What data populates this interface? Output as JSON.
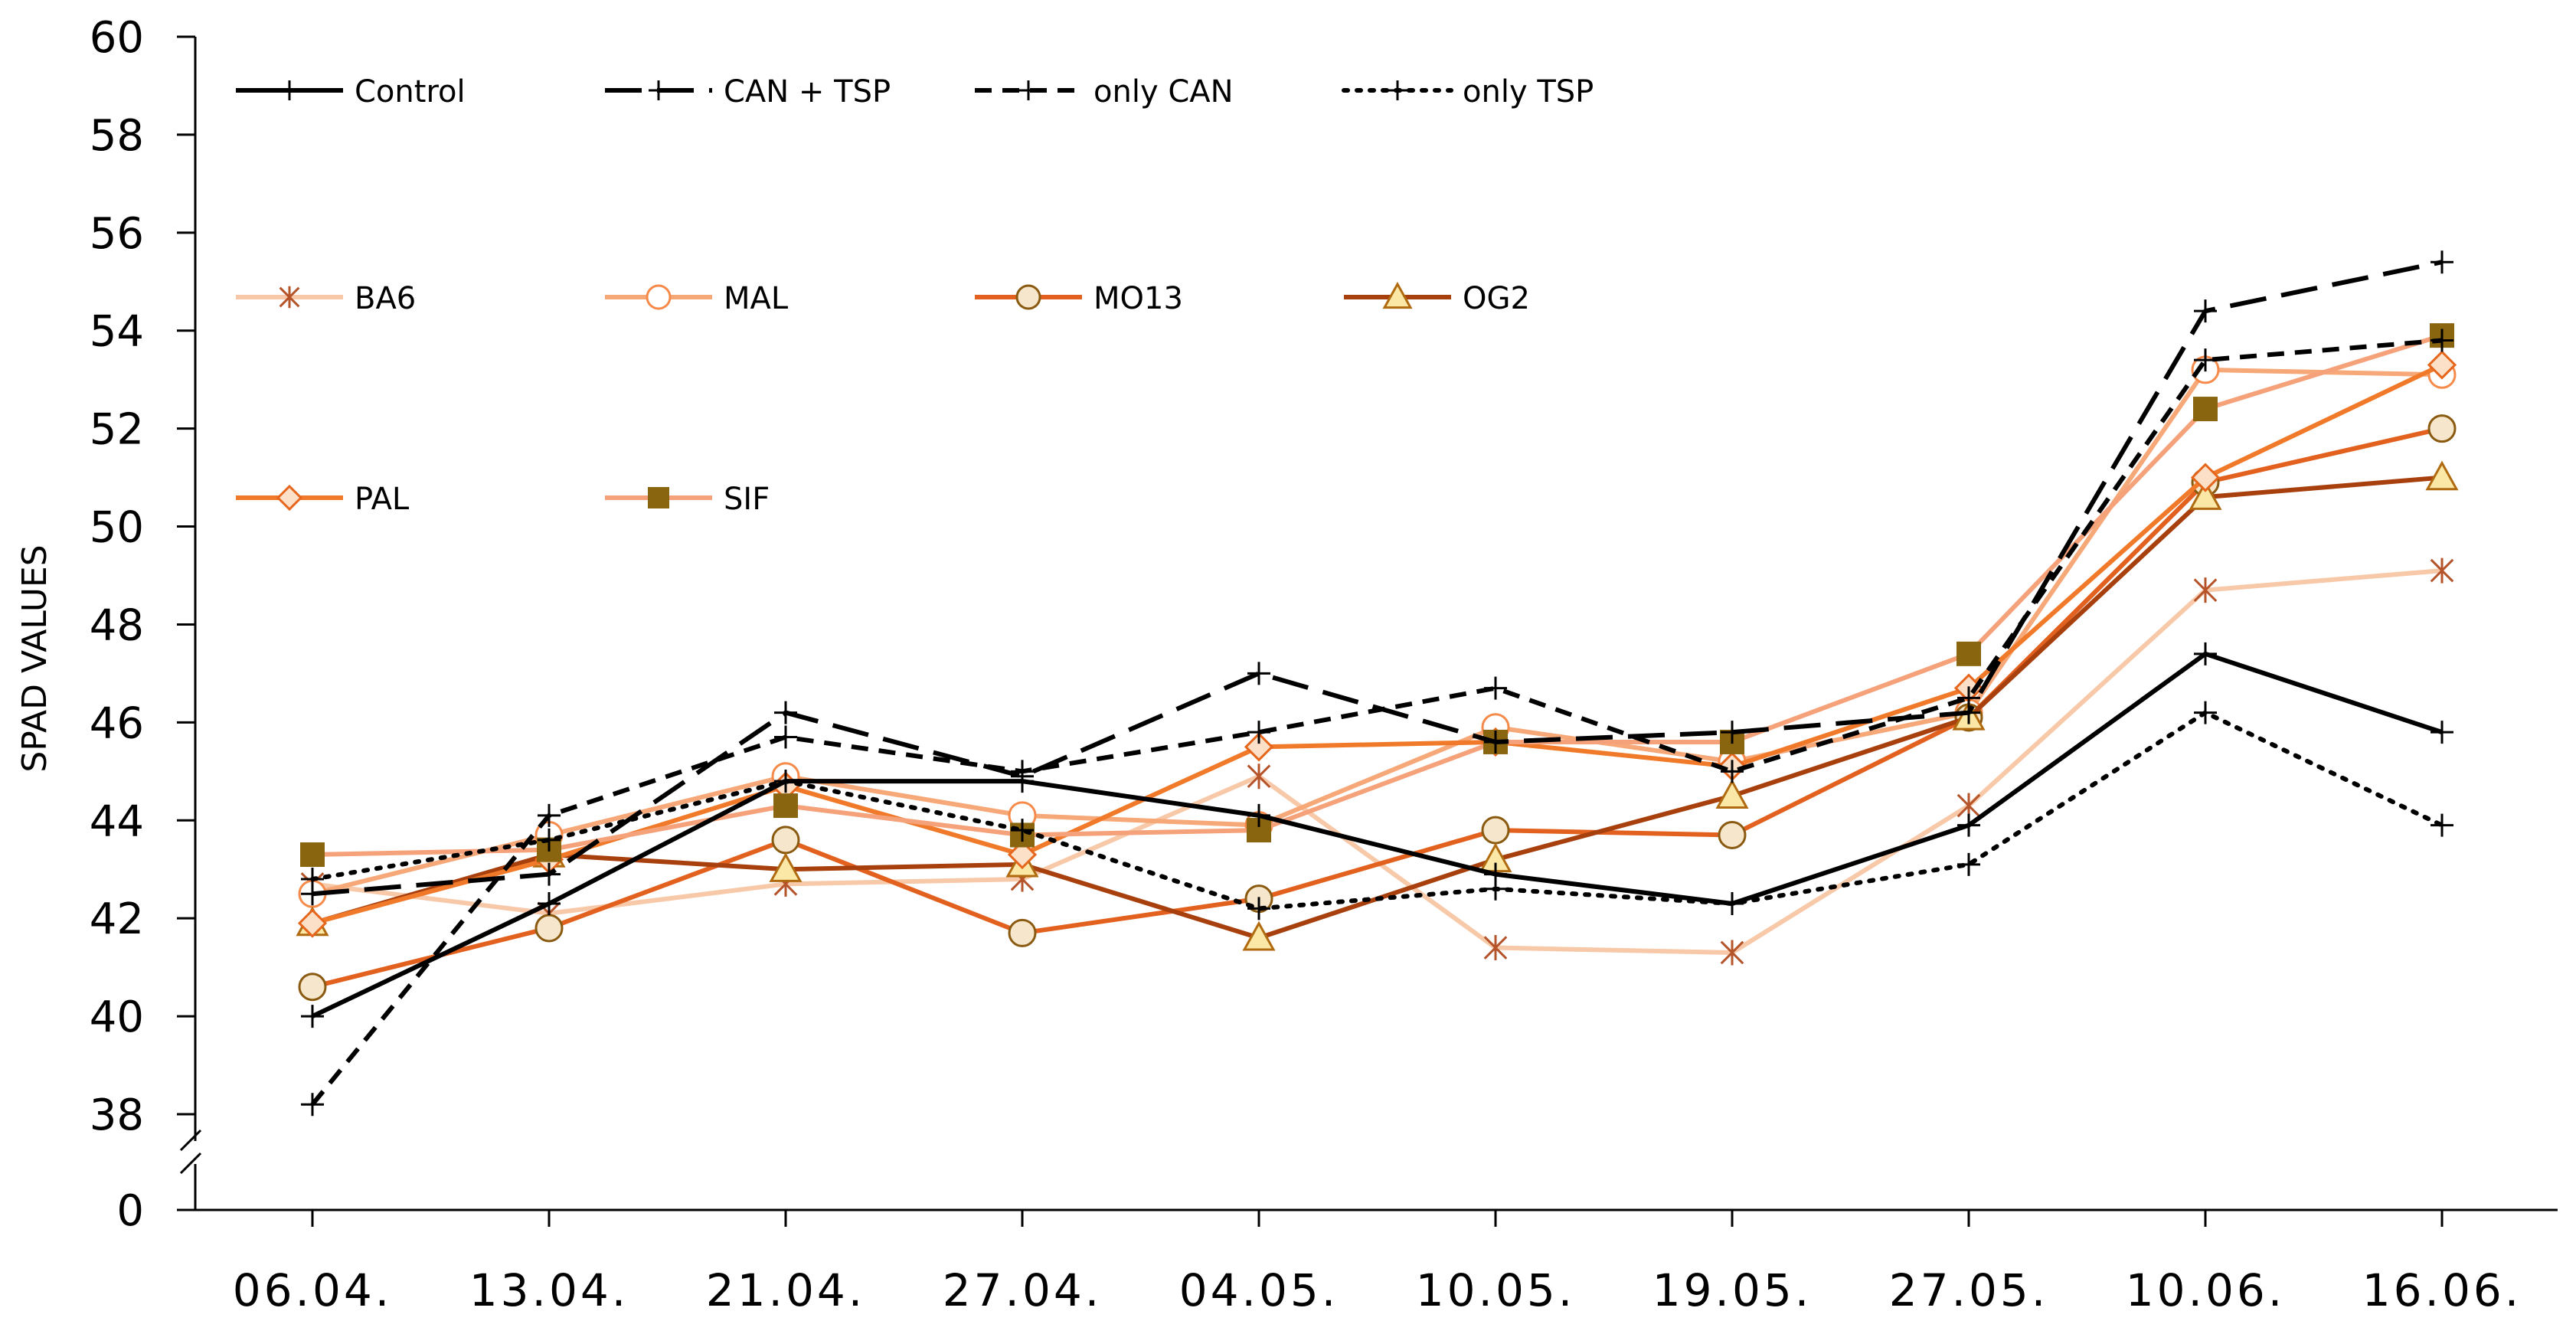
{
  "chart_data": {
    "type": "line",
    "title": "",
    "xlabel": "",
    "ylabel": "SPAD VALUES",
    "ylim": [
      38,
      60
    ],
    "axis_break": {
      "lower_label": "0",
      "break_below": 38
    },
    "yticks": [
      "0",
      "38",
      "40",
      "42",
      "44",
      "46",
      "48",
      "50",
      "52",
      "54",
      "56",
      "58",
      "60"
    ],
    "categories": [
      "06.04.",
      "13.04.",
      "21.04.",
      "27.04.",
      "04.05.",
      "10.05.",
      "19.05.",
      "27.05.",
      "10.06.",
      "16.06."
    ],
    "series": [
      {
        "name": "Control",
        "color": "#000000",
        "dash": "solid",
        "marker": "plus",
        "values": [
          40.0,
          42.3,
          44.8,
          44.8,
          44.1,
          42.9,
          42.3,
          43.9,
          47.4,
          45.8
        ]
      },
      {
        "name": "CAN + TSP",
        "color": "#000000",
        "dash": "long",
        "marker": "plus",
        "values": [
          42.5,
          42.9,
          46.2,
          44.9,
          47.0,
          45.6,
          45.8,
          46.2,
          54.4,
          55.4
        ]
      },
      {
        "name": "only CAN",
        "color": "#000000",
        "dash": "short",
        "marker": "plus",
        "values": [
          38.2,
          44.1,
          45.7,
          45.0,
          45.8,
          46.7,
          45.0,
          46.5,
          53.4,
          53.8
        ]
      },
      {
        "name": "only TSP",
        "color": "#000000",
        "dash": "dot",
        "marker": "plus",
        "values": [
          42.8,
          43.6,
          44.8,
          43.8,
          42.2,
          42.6,
          42.3,
          43.1,
          46.2,
          43.9
        ]
      },
      {
        "name": "BA6",
        "color": "#f8c9a8",
        "dash": "solid",
        "marker": "asterisk",
        "markerColor": "#b5532a",
        "values": [
          42.7,
          42.1,
          42.7,
          42.8,
          44.9,
          41.4,
          41.3,
          44.3,
          48.7,
          49.1
        ]
      },
      {
        "name": "MAL",
        "color": "#f6a878",
        "dash": "solid",
        "marker": "circle",
        "markerColor": "#f58a4a",
        "markerFill": "#ffffff",
        "values": [
          42.5,
          43.7,
          44.9,
          44.1,
          43.9,
          45.9,
          45.2,
          46.2,
          53.2,
          53.1
        ]
      },
      {
        "name": "MO13",
        "color": "#e2611f",
        "dash": "solid",
        "marker": "circle",
        "markerColor": "#8a5a10",
        "markerFill": "#f5e6cc",
        "values": [
          40.6,
          41.8,
          43.6,
          41.7,
          42.4,
          43.8,
          43.7,
          46.1,
          50.9,
          52.0
        ]
      },
      {
        "name": "OG2",
        "color": "#a8400e",
        "dash": "solid",
        "marker": "triangle",
        "markerColor": "#b06a10",
        "markerFill": "#fbe8a6",
        "values": [
          41.9,
          43.3,
          43.0,
          43.1,
          41.6,
          43.2,
          44.5,
          46.1,
          50.6,
          51.0
        ]
      },
      {
        "name": "PAL",
        "color": "#f07a2a",
        "dash": "solid",
        "marker": "diamond",
        "markerColor": "#e5661c",
        "markerFill": "#fde0c8",
        "values": [
          41.9,
          43.2,
          44.7,
          43.3,
          45.5,
          45.6,
          45.1,
          46.7,
          51.0,
          53.3
        ]
      },
      {
        "name": "SIF",
        "color": "#f5a27a",
        "dash": "solid",
        "marker": "square",
        "markerColor": "#8a6510",
        "markerFill": "#8a6510",
        "values": [
          43.3,
          43.4,
          44.3,
          43.7,
          43.8,
          45.6,
          45.6,
          47.4,
          52.4,
          53.9
        ]
      }
    ],
    "legend": {
      "placement": "top-left",
      "rows": [
        [
          "Control",
          "CAN + TSP",
          "only CAN",
          "only TSP"
        ],
        [
          "BA6",
          "MAL",
          "MO13",
          "OG2"
        ],
        [
          "PAL",
          "SIF"
        ]
      ]
    }
  }
}
